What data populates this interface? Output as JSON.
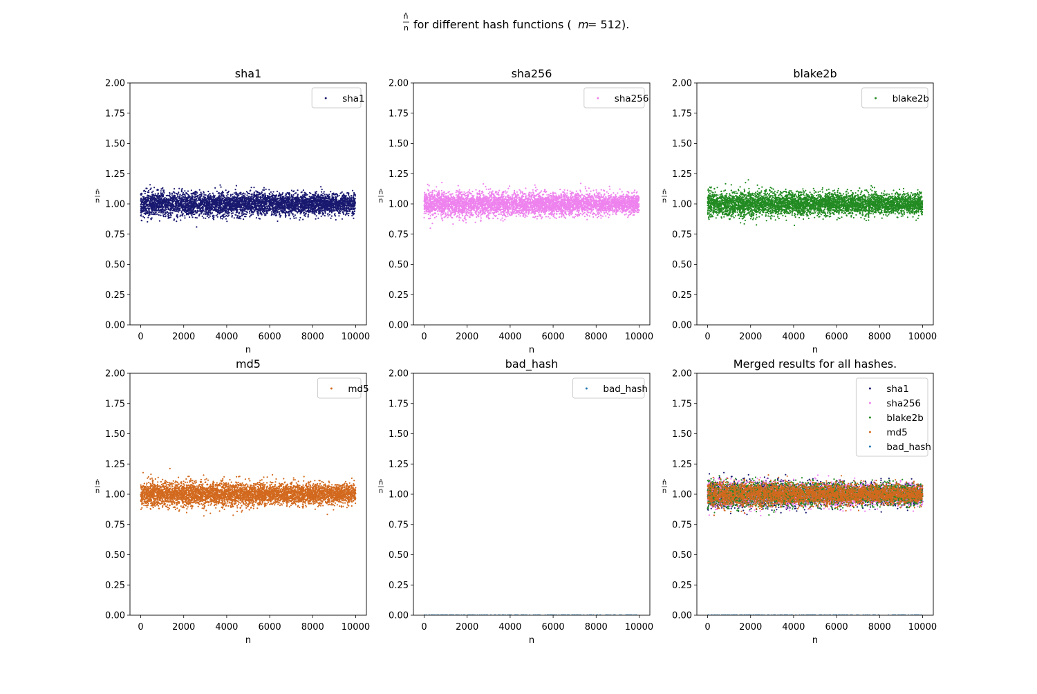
{
  "figure": {
    "suptitle": {
      "hat_n": "n̂",
      "n": "n",
      "text": "for different hash functions (",
      "m": "m",
      "eq": " = 512)."
    }
  },
  "chart_data": [
    {
      "type": "scatter",
      "title": "sha1",
      "xlabel": "n",
      "ylabel": {
        "num": "n̂",
        "den": "n"
      },
      "xlim": [
        -500,
        10500
      ],
      "ylim": [
        0,
        2
      ],
      "xticks": [
        "0",
        "2000",
        "4000",
        "6000",
        "8000",
        "10000"
      ],
      "yticks": [
        "0.00",
        "0.25",
        "0.50",
        "0.75",
        "1.00",
        "1.25",
        "1.50",
        "1.75",
        "2.00"
      ],
      "legend": "upper right",
      "series": [
        {
          "name": "sha1",
          "color": "#191970",
          "n_min": 0,
          "n_max": 10000,
          "points": 5000,
          "center": 1.0,
          "spread_start": 0.16,
          "spread_end": 0.12
        }
      ]
    },
    {
      "type": "scatter",
      "title": "sha256",
      "xlabel": "n",
      "ylabel": {
        "num": "n̂",
        "den": "n"
      },
      "xlim": [
        -500,
        10500
      ],
      "ylim": [
        0,
        2
      ],
      "xticks": [
        "0",
        "2000",
        "4000",
        "6000",
        "8000",
        "10000"
      ],
      "yticks": [
        "0.00",
        "0.25",
        "0.50",
        "0.75",
        "1.00",
        "1.25",
        "1.50",
        "1.75",
        "2.00"
      ],
      "legend": "upper right",
      "series": [
        {
          "name": "sha256",
          "color": "#ee82ee",
          "n_min": 0,
          "n_max": 10000,
          "points": 5000,
          "center": 1.0,
          "spread_start": 0.16,
          "spread_end": 0.12
        }
      ]
    },
    {
      "type": "scatter",
      "title": "blake2b",
      "xlabel": "n",
      "ylabel": {
        "num": "n̂",
        "den": "n"
      },
      "xlim": [
        -500,
        10500
      ],
      "ylim": [
        0,
        2
      ],
      "xticks": [
        "0",
        "2000",
        "4000",
        "6000",
        "8000",
        "10000"
      ],
      "yticks": [
        "0.00",
        "0.25",
        "0.50",
        "0.75",
        "1.00",
        "1.25",
        "1.50",
        "1.75",
        "2.00"
      ],
      "legend": "upper right",
      "series": [
        {
          "name": "blake2b",
          "color": "#228b22",
          "n_min": 0,
          "n_max": 10000,
          "points": 5000,
          "center": 1.0,
          "spread_start": 0.16,
          "spread_end": 0.12
        }
      ]
    },
    {
      "type": "scatter",
      "title": "md5",
      "xlabel": "n",
      "ylabel": {
        "num": "n̂",
        "den": "n"
      },
      "xlim": [
        -500,
        10500
      ],
      "ylim": [
        0,
        2
      ],
      "xticks": [
        "0",
        "2000",
        "4000",
        "6000",
        "8000",
        "10000"
      ],
      "yticks": [
        "0.00",
        "0.25",
        "0.50",
        "0.75",
        "1.00",
        "1.25",
        "1.50",
        "1.75",
        "2.00"
      ],
      "legend": "upper right",
      "series": [
        {
          "name": "md5",
          "color": "#d2691e",
          "n_min": 0,
          "n_max": 10000,
          "points": 5000,
          "center": 1.0,
          "spread_start": 0.16,
          "spread_end": 0.12
        }
      ]
    },
    {
      "type": "scatter",
      "title": "bad_hash",
      "xlabel": "n",
      "ylabel": {
        "num": "n̂",
        "den": "n"
      },
      "xlim": [
        -500,
        10500
      ],
      "ylim": [
        0,
        2
      ],
      "xticks": [
        "0",
        "2000",
        "4000",
        "6000",
        "8000",
        "10000"
      ],
      "yticks": [
        "0.00",
        "0.25",
        "0.50",
        "0.75",
        "1.00",
        "1.25",
        "1.50",
        "1.75",
        "2.00"
      ],
      "legend": "upper right",
      "series": [
        {
          "name": "bad_hash",
          "color": "#1f77b4",
          "n_min": 0,
          "n_max": 10000,
          "points": 200,
          "center": 0.0,
          "spread_start": 0.0,
          "spread_end": 0.0
        }
      ]
    },
    {
      "type": "scatter",
      "title": "Merged results for all hashes.",
      "xlabel": "n",
      "ylabel": {
        "num": "n̂",
        "den": "n"
      },
      "xlim": [
        -500,
        10500
      ],
      "ylim": [
        0,
        2
      ],
      "xticks": [
        "0",
        "2000",
        "4000",
        "6000",
        "8000",
        "10000"
      ],
      "yticks": [
        "0.00",
        "0.25",
        "0.50",
        "0.75",
        "1.00",
        "1.25",
        "1.50",
        "1.75",
        "2.00"
      ],
      "legend": "upper right",
      "series": [
        {
          "name": "sha1",
          "color": "#191970",
          "n_min": 0,
          "n_max": 10000,
          "points": 3000,
          "center": 1.0,
          "spread_start": 0.16,
          "spread_end": 0.12
        },
        {
          "name": "sha256",
          "color": "#ee82ee",
          "n_min": 0,
          "n_max": 10000,
          "points": 3000,
          "center": 1.0,
          "spread_start": 0.16,
          "spread_end": 0.12
        },
        {
          "name": "blake2b",
          "color": "#228b22",
          "n_min": 0,
          "n_max": 10000,
          "points": 3000,
          "center": 1.0,
          "spread_start": 0.16,
          "spread_end": 0.12
        },
        {
          "name": "md5",
          "color": "#d2691e",
          "n_min": 0,
          "n_max": 10000,
          "points": 3500,
          "center": 1.0,
          "spread_start": 0.15,
          "spread_end": 0.11
        },
        {
          "name": "bad_hash",
          "color": "#1f77b4",
          "n_min": 0,
          "n_max": 10000,
          "points": 200,
          "center": 0.0,
          "spread_start": 0.0,
          "spread_end": 0.0
        }
      ]
    }
  ]
}
